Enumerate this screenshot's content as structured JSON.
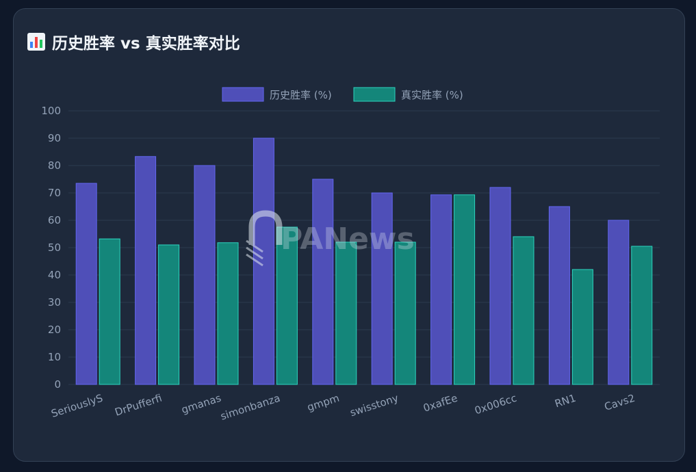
{
  "title": "历史胜率 vs 真实胜率对比",
  "title_icon": "bar-chart-icon",
  "watermark": "PANews",
  "colors": {
    "historical": "#4f4fb8",
    "historical_border": "#6366f1",
    "real": "#14867a",
    "real_border": "#2dd4bf",
    "grid": "#2c3a4f"
  },
  "chart_data": {
    "type": "bar",
    "categories": [
      "SeriouslyS",
      "DrPufferfi",
      "gmanas",
      "simonbanza",
      "gmpm",
      "swisstony",
      "0xafEe",
      "0x006cc",
      "RN1",
      "Cavs2"
    ],
    "series": [
      {
        "name": "历史胜率 (%)",
        "values": [
          73.5,
          83.3,
          80,
          90,
          75,
          70,
          69.3,
          72,
          65,
          60
        ]
      },
      {
        "name": "真实胜率 (%)",
        "values": [
          53.2,
          51,
          51.8,
          57.5,
          52,
          52,
          69.3,
          54,
          42,
          50.5
        ]
      }
    ],
    "ylim": [
      0,
      100
    ],
    "yticks": [
      0,
      10,
      20,
      30,
      40,
      50,
      60,
      70,
      80,
      90,
      100
    ],
    "grid": true,
    "legend": "top-center"
  }
}
